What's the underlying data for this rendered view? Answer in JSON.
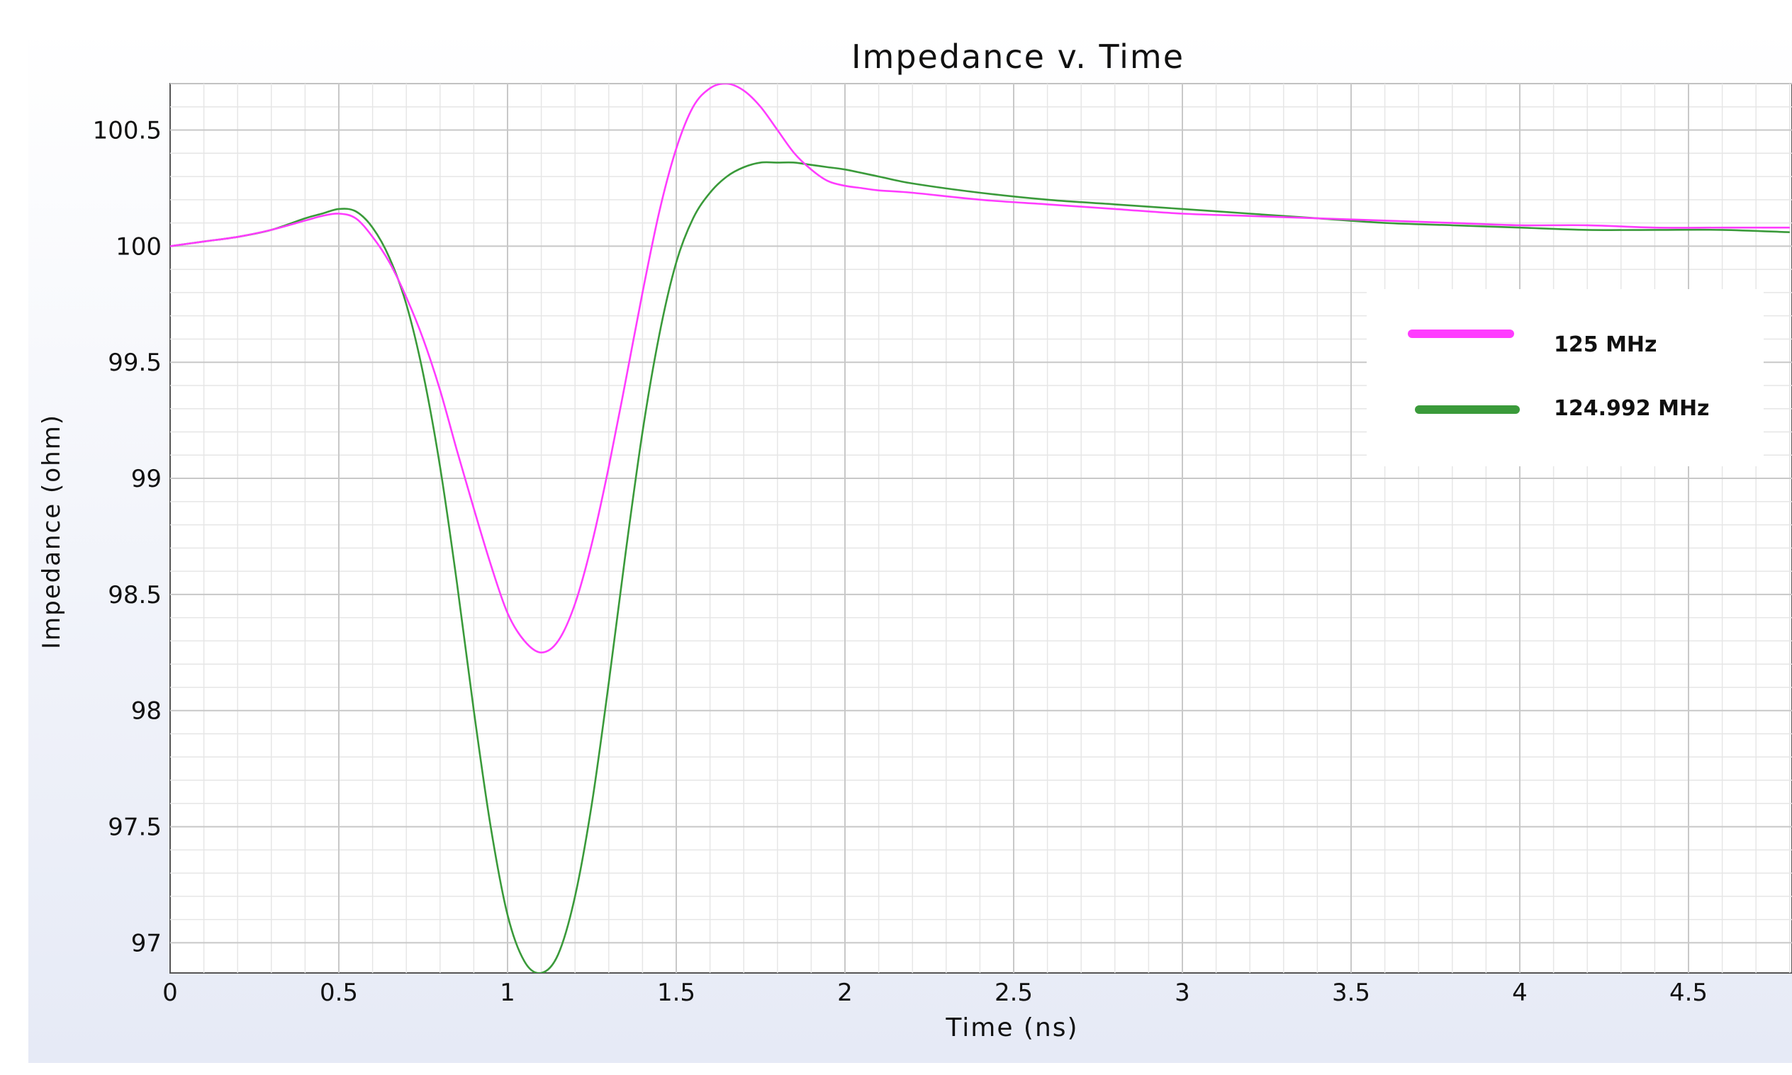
{
  "colors": {
    "background_gradient_bottom": "#e6eaf6",
    "plot_background": "#ffffff",
    "grid_major": "#c8c8c8",
    "grid_minor": "#e6e6e6",
    "series_125": "#ff3cff",
    "series_124992": "#3a9a3a"
  },
  "chart_data": {
    "type": "line",
    "title": "Impedance v. Time",
    "xlabel": "Time (ns)",
    "ylabel": "Impedance (ohm)",
    "xlim": [
      0,
      4.8
    ],
    "ylim": [
      96.87,
      100.7
    ],
    "grid": true,
    "legend_position": "right",
    "x_ticks": [
      "0",
      "0.5",
      "1",
      "1.5",
      "2",
      "2.5",
      "3",
      "3.5",
      "4",
      "4.5"
    ],
    "y_ticks": [
      "97",
      "97.5",
      "98",
      "98.5",
      "99",
      "99.5",
      "100",
      "100.5"
    ],
    "x_tick_values": [
      0,
      0.5,
      1,
      1.5,
      2,
      2.5,
      3,
      3.5,
      4,
      4.5
    ],
    "y_tick_values": [
      97,
      97.5,
      98,
      98.5,
      99,
      99.5,
      100,
      100.5
    ],
    "series": [
      {
        "name": "125 MHz",
        "color": "#ff3cff",
        "x": [
          0,
          0.1,
          0.2,
          0.3,
          0.4,
          0.45,
          0.5,
          0.55,
          0.6,
          0.65,
          0.7,
          0.75,
          0.8,
          0.85,
          0.9,
          0.95,
          1.0,
          1.05,
          1.1,
          1.15,
          1.2,
          1.25,
          1.3,
          1.35,
          1.4,
          1.45,
          1.5,
          1.55,
          1.6,
          1.65,
          1.7,
          1.75,
          1.8,
          1.85,
          1.9,
          1.95,
          2.0,
          2.05,
          2.1,
          2.2,
          2.4,
          2.6,
          2.8,
          3.0,
          3.2,
          3.4,
          3.6,
          3.8,
          4.0,
          4.2,
          4.4,
          4.6,
          4.8
        ],
        "y": [
          100.0,
          100.02,
          100.04,
          100.07,
          100.11,
          100.13,
          100.14,
          100.12,
          100.04,
          99.93,
          99.78,
          99.6,
          99.38,
          99.12,
          98.87,
          98.63,
          98.42,
          98.3,
          98.25,
          98.3,
          98.46,
          98.72,
          99.05,
          99.42,
          99.8,
          100.15,
          100.42,
          100.6,
          100.68,
          100.7,
          100.67,
          100.6,
          100.5,
          100.4,
          100.33,
          100.28,
          100.26,
          100.25,
          100.24,
          100.23,
          100.2,
          100.18,
          100.16,
          100.14,
          100.13,
          100.12,
          100.11,
          100.1,
          100.09,
          100.09,
          100.08,
          100.08,
          100.08
        ]
      },
      {
        "name": "124.992 MHz",
        "color": "#3a9a3a",
        "x": [
          0,
          0.1,
          0.2,
          0.3,
          0.4,
          0.45,
          0.5,
          0.55,
          0.6,
          0.65,
          0.7,
          0.75,
          0.8,
          0.85,
          0.9,
          0.95,
          1.0,
          1.05,
          1.1,
          1.15,
          1.2,
          1.25,
          1.3,
          1.35,
          1.4,
          1.45,
          1.5,
          1.55,
          1.6,
          1.65,
          1.7,
          1.75,
          1.8,
          1.85,
          1.9,
          1.95,
          2.0,
          2.1,
          2.2,
          2.4,
          2.6,
          2.8,
          3.0,
          3.2,
          3.4,
          3.6,
          3.8,
          4.0,
          4.2,
          4.4,
          4.6,
          4.8
        ],
        "y": [
          100.0,
          100.02,
          100.04,
          100.07,
          100.12,
          100.14,
          100.16,
          100.15,
          100.08,
          99.95,
          99.75,
          99.45,
          99.05,
          98.55,
          98.0,
          97.5,
          97.12,
          96.92,
          96.87,
          96.95,
          97.2,
          97.6,
          98.12,
          98.68,
          99.2,
          99.62,
          99.93,
          100.12,
          100.23,
          100.3,
          100.34,
          100.36,
          100.36,
          100.36,
          100.35,
          100.34,
          100.33,
          100.3,
          100.27,
          100.23,
          100.2,
          100.18,
          100.16,
          100.14,
          100.12,
          100.1,
          100.09,
          100.08,
          100.07,
          100.07,
          100.07,
          100.06
        ]
      }
    ]
  }
}
